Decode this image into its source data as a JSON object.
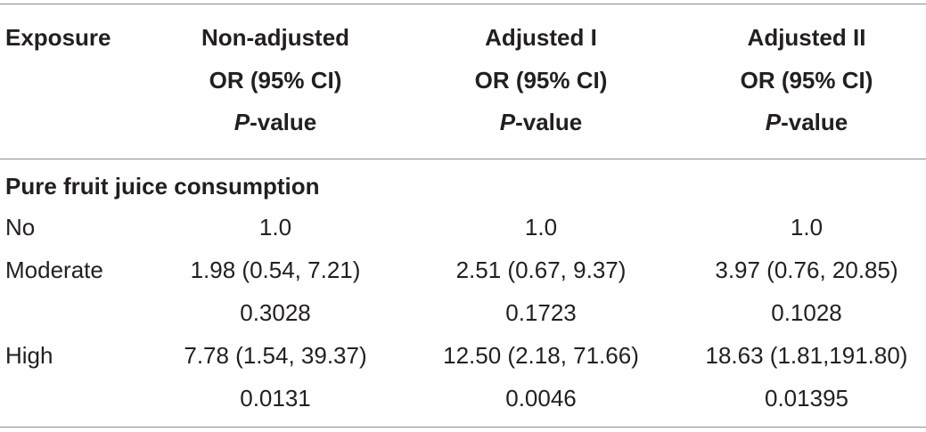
{
  "header": {
    "exposure": "Exposure",
    "columns": [
      {
        "name": "Non-adjusted",
        "sub": "OR (95% CI)",
        "p_italic": "P",
        "p_rest": "-value"
      },
      {
        "name": "Adjusted I",
        "sub": "OR (95% CI)",
        "p_italic": "P",
        "p_rest": "-value"
      },
      {
        "name": "Adjusted II",
        "sub": "OR (95% CI)",
        "p_italic": "P",
        "p_rest": "-value"
      }
    ]
  },
  "section_title": "Pure fruit juice consumption",
  "rows": [
    {
      "label": "No",
      "values": [
        "1.0",
        "1.0",
        "1.0"
      ]
    },
    {
      "label": "Moderate",
      "values": [
        "1.98 (0.54, 7.21)",
        "2.51 (0.67, 9.37)",
        "3.97 (0.76, 20.85)"
      ]
    },
    {
      "label": "",
      "values": [
        "0.3028",
        "0.1723",
        "0.1028"
      ]
    },
    {
      "label": "High",
      "values": [
        "7.78 (1.54, 39.37)",
        "12.50 (2.18, 71.66)",
        "18.63 (1.81,191.80)"
      ]
    },
    {
      "label": "",
      "values": [
        "0.0131",
        "0.0046",
        "0.01395"
      ]
    }
  ]
}
